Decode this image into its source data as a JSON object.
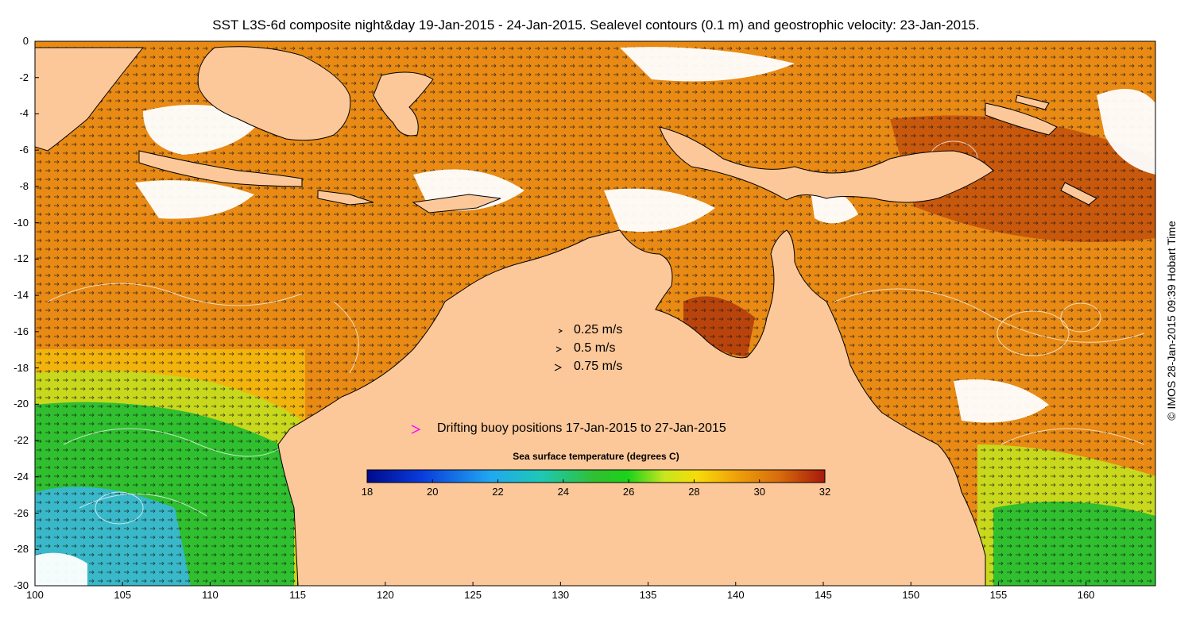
{
  "title": "SST L3S-6d composite night&day 19-Jan-2015 - 24-Jan-2015. Sealevel contours (0.1 m) and geostrophic velocity: 23-Jan-2015.",
  "axes": {
    "lat_labels": [
      "0",
      "-2",
      "-4",
      "-6",
      "-8",
      "-10",
      "-12",
      "-14",
      "-16",
      "-18",
      "-20",
      "-22",
      "-24",
      "-26",
      "-28",
      "-30"
    ],
    "lon_labels": [
      "100",
      "105",
      "110",
      "115",
      "120",
      "125",
      "130",
      "135",
      "140",
      "145",
      "150",
      "155",
      "160"
    ]
  },
  "velocity_legend": {
    "items": [
      {
        "label": "0.25 m/s",
        "speed": 0.25
      },
      {
        "label": "0.5 m/s",
        "speed": 0.5
      },
      {
        "label": "0.75 m/s",
        "speed": 0.75
      }
    ]
  },
  "buoy_legend": {
    "marker": ">",
    "label": "Drifting buoy positions 17-Jan-2015 to 27-Jan-2015",
    "color": "#ff00ff"
  },
  "colorbar": {
    "title": "Sea surface temperature (degrees C)",
    "tick_labels": [
      "18",
      "20",
      "22",
      "24",
      "26",
      "28",
      "30",
      "32"
    ],
    "range": [
      18,
      32
    ]
  },
  "credit": "© IMOS 28-Jan-2015 09:39 Hobart Time",
  "colors": {
    "land": "#fcc899",
    "warm_sea": "#e88a14",
    "hot_sea": "#b8440c",
    "mild_sea": "#f2b40c",
    "cool_sea": "#2fbf2f",
    "cold_sea": "#38b8c8",
    "cloud": "#ffffff"
  }
}
